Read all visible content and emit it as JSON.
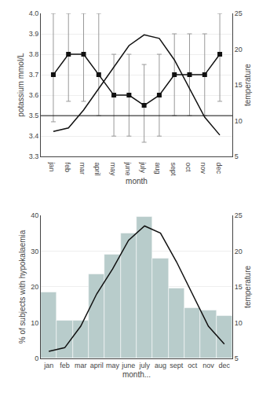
{
  "chart_data": [
    {
      "type": "line",
      "xlabel": "month",
      "ylabel": "potassium mmol/L",
      "y2label": "temperature",
      "categories": [
        "jan",
        "feb",
        "mar",
        "april",
        "may",
        "june",
        "july",
        "aug",
        "sept",
        "oct",
        "nov",
        "dec"
      ],
      "series": [
        {
          "type": "line",
          "color": "#111111",
          "marker": "square",
          "values": [
            3.7,
            3.8,
            3.8,
            3.7,
            3.6,
            3.6,
            3.55,
            3.6,
            3.7,
            3.7,
            3.7,
            3.8
          ],
          "error_minus": [
            0.23,
            0.23,
            0.23,
            0.2,
            0.2,
            0.2,
            0.18,
            0.2,
            0.2,
            0.2,
            0.2,
            0.23
          ],
          "error_plus": [
            0.3,
            0.2,
            0.2,
            0.3,
            0.2,
            0.2,
            0.2,
            0.2,
            0.2,
            0.2,
            0.2,
            0.2
          ]
        },
        {
          "type": "line",
          "color": "#111111",
          "axis": "y2",
          "values": [
            8.5,
            9.0,
            11.5,
            14.5,
            17.5,
            20.5,
            22.0,
            21.5,
            18.5,
            14.5,
            10.5,
            8.0
          ]
        }
      ],
      "ref_line": 3.5,
      "ylim": [
        3.3,
        4.0
      ],
      "yticks": [
        3.3,
        3.4,
        3.5,
        3.6,
        3.7,
        3.8,
        3.9,
        {
          "value": 4.0,
          "label": "4.0"
        }
      ],
      "y2lim": [
        5,
        25
      ],
      "y2ticks": [
        5,
        10,
        15,
        20,
        25
      ],
      "grid": true
    },
    {
      "type": "bar",
      "xlabel": "month...",
      "ylabel": "% of subjects with hypokalaemia",
      "y2label": "temperature",
      "categories": [
        "jan",
        "feb",
        "mar",
        "april",
        "may",
        "june",
        "july",
        "aug",
        "sept",
        "oct",
        "nov",
        "dec"
      ],
      "series": [
        {
          "type": "bar",
          "color": "#b8cccb",
          "values": [
            18.5,
            10.5,
            10.5,
            23.5,
            29.0,
            35.0,
            39.5,
            28.0,
            19.5,
            14.0,
            13.5,
            12.0
          ]
        },
        {
          "type": "line",
          "color": "#111111",
          "axis": "y2",
          "values": [
            6.0,
            6.5,
            9.5,
            14.0,
            17.5,
            21.5,
            23.5,
            22.5,
            18.5,
            14.0,
            9.5,
            7.0
          ]
        }
      ],
      "ylim": [
        0,
        40
      ],
      "yticks": [
        0,
        10,
        20,
        30,
        40
      ],
      "y2lim": [
        5,
        25
      ],
      "y2ticks": [
        5,
        10,
        15,
        20,
        25
      ],
      "grid": true
    }
  ]
}
